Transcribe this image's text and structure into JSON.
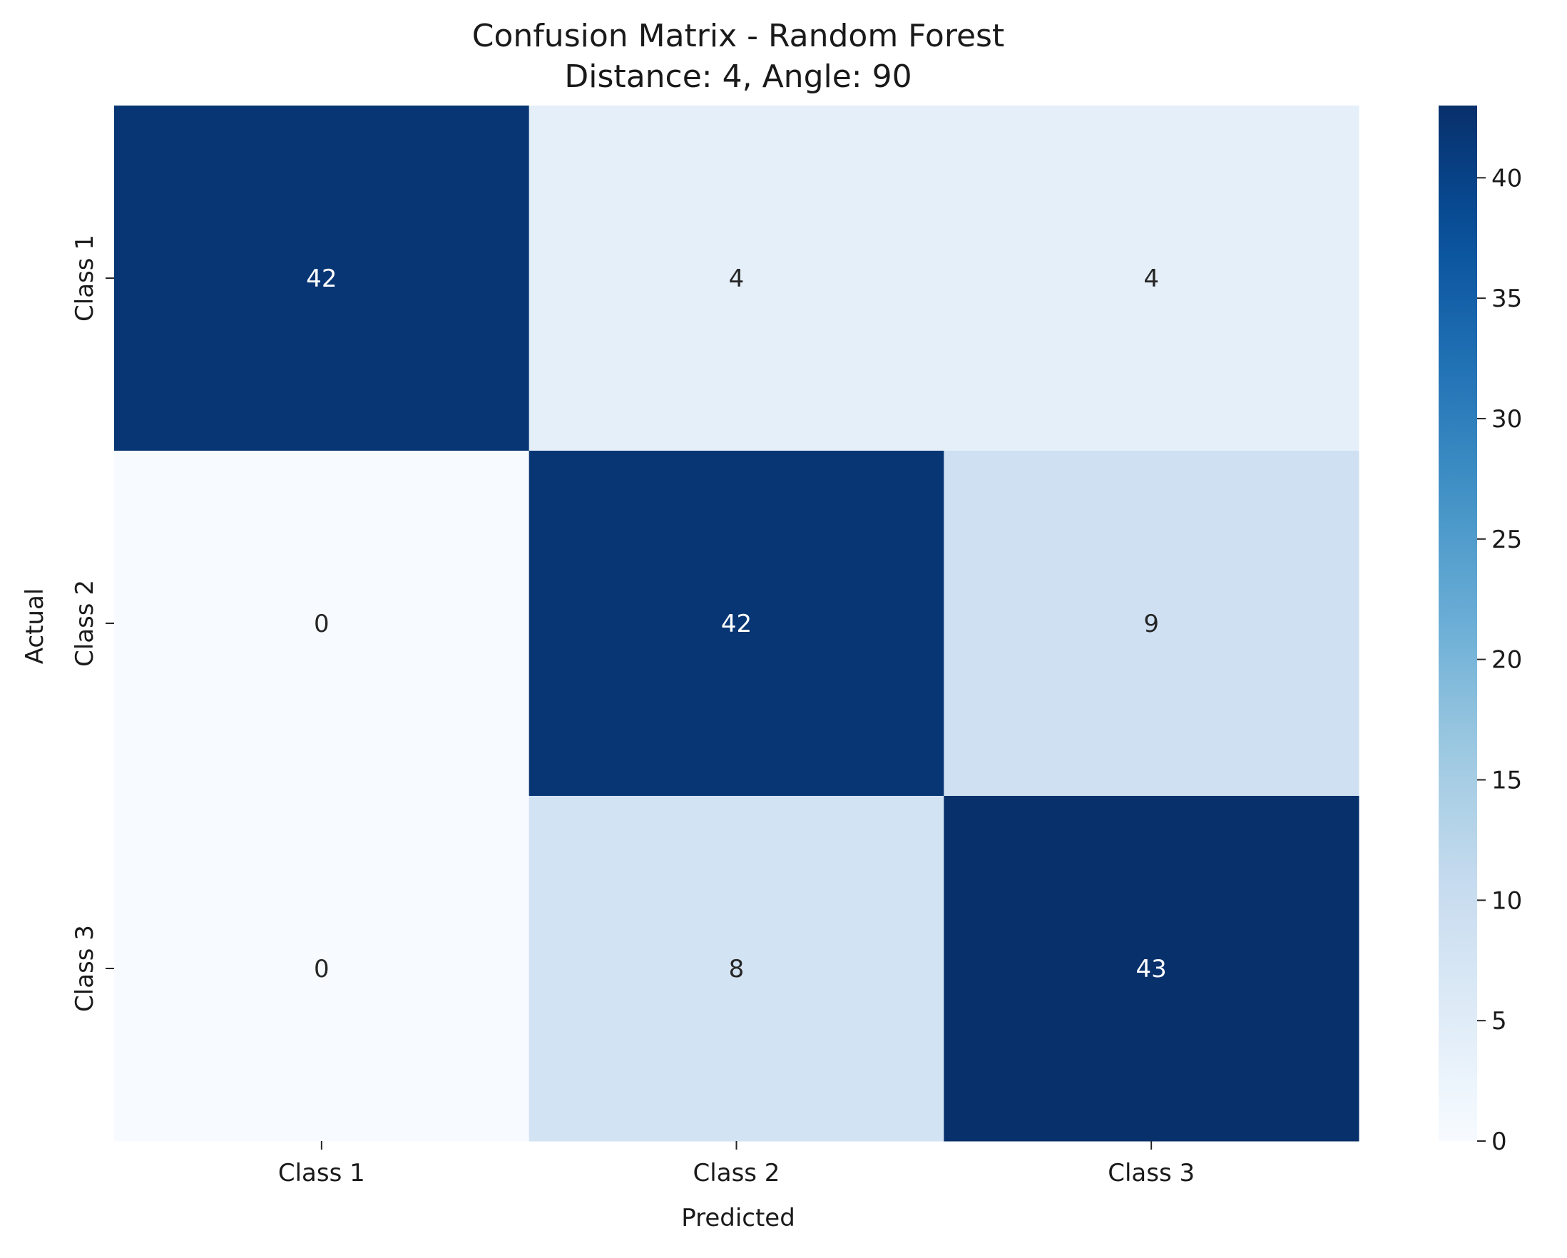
{
  "chart_data": {
    "type": "heatmap",
    "title": "Confusion Matrix - Random Forest",
    "subtitle": "Distance: 4, Angle: 90",
    "xlabel": "Predicted",
    "ylabel": "Actual",
    "x_categories": [
      "Class 1",
      "Class 2",
      "Class 3"
    ],
    "y_categories": [
      "Class 1",
      "Class 2",
      "Class 3"
    ],
    "values": [
      [
        42,
        4,
        4
      ],
      [
        0,
        42,
        9
      ],
      [
        0,
        8,
        43
      ]
    ],
    "colormap": "Blues",
    "color_min": 0,
    "color_max": 43,
    "colorbar_ticks": [
      0,
      5,
      10,
      15,
      20,
      25,
      30,
      35,
      40
    ],
    "colorbar_tick_labels": [
      "0",
      "5",
      "10",
      "15",
      "20",
      "25",
      "30",
      "35",
      "40"
    ],
    "legend": "colorbar-right",
    "colors": {
      "low": "#f7fbff",
      "high": "#08306b",
      "text_dark": "#262626",
      "text_light": "#ffffff"
    }
  }
}
